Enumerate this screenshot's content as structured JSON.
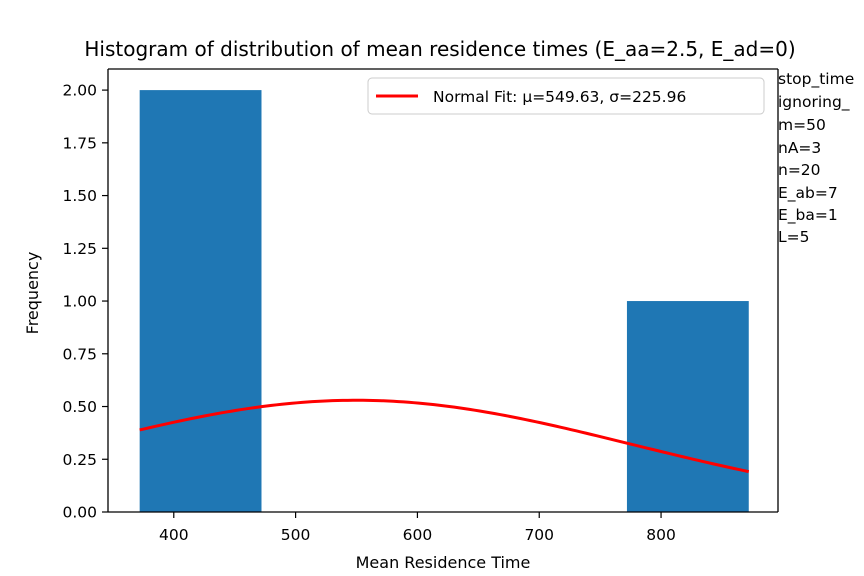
{
  "chart_data": {
    "type": "bar",
    "title": "Histogram of distribution of mean residence times (E_aa=2.5, E_ad=0)",
    "xlabel": "Mean Residence Time",
    "ylabel": "Frequency",
    "xlim": [
      346,
      896
    ],
    "ylim": [
      0,
      2.1
    ],
    "x_ticks": [
      400,
      500,
      600,
      700,
      800
    ],
    "x_tick_labels": [
      "400",
      "500",
      "600",
      "700",
      "800"
    ],
    "y_ticks": [
      0,
      0.25,
      0.5,
      0.75,
      1.0,
      1.25,
      1.5,
      1.75,
      2.0
    ],
    "y_tick_labels": [
      "0.00",
      "0.25",
      "0.50",
      "0.75",
      "1.00",
      "1.25",
      "1.50",
      "1.75",
      "2.00"
    ],
    "bins": [
      {
        "start": 372,
        "end": 472,
        "count": 2
      },
      {
        "start": 472,
        "end": 572,
        "count": 0
      },
      {
        "start": 572,
        "end": 672,
        "count": 0
      },
      {
        "start": 672,
        "end": 772,
        "count": 0
      },
      {
        "start": 772,
        "end": 872,
        "count": 1
      }
    ],
    "bar_color": "#1f77b4",
    "series": [
      {
        "name": "Normal Fit: μ=549.63, σ=225.96",
        "type": "line",
        "color": "#ff0000",
        "mu": 549.63,
        "sigma": 225.96,
        "x_range": [
          372,
          872
        ],
        "scale": 300
      }
    ],
    "legend_position": "top-right",
    "grid": false
  },
  "side_text": [
    "stop_time",
    "ignoring_",
    "m=50",
    "nA=3",
    "n=20",
    "E_ab=7",
    "E_ba=1",
    "L=5"
  ]
}
